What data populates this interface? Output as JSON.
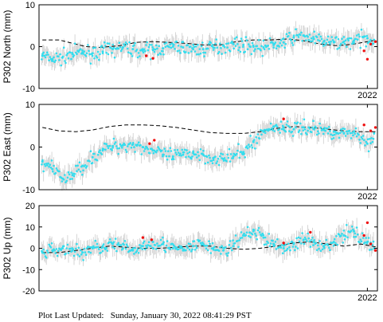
{
  "footer": {
    "label": "Plot Last Updated:",
    "timestamp": "Sunday, January 30, 2022 08:41:29 PST"
  },
  "colors": {
    "data_points": "#33ddee",
    "recent_points": "#ee1111",
    "error_bars": "#cccccc",
    "model_line": "#000000"
  },
  "chart_data": [
    {
      "type": "scatter",
      "ylabel": "P302 North (mm)",
      "ylim": [
        -10,
        10
      ],
      "yticks": [
        -10,
        0,
        10
      ],
      "xtick_label": "2022",
      "xlim": [
        2017.1,
        2022.15
      ],
      "xtick_value": 2022.0,
      "series": [
        {
          "values": [
            [
              2017.15,
              -2.2
            ],
            [
              2017.3,
              -3.0
            ],
            [
              2017.45,
              -2.6
            ],
            [
              2017.6,
              -1.8
            ],
            [
              2017.75,
              -1.4
            ],
            [
              2017.9,
              -1.6
            ],
            [
              2018.05,
              -1.2
            ],
            [
              2018.2,
              -0.6
            ],
            [
              2018.35,
              -0.2
            ],
            [
              2018.5,
              -0.6
            ],
            [
              2018.65,
              -1.0
            ],
            [
              2018.8,
              -0.8
            ],
            [
              2018.95,
              -0.4
            ],
            [
              2019.1,
              0.0
            ],
            [
              2019.25,
              -0.2
            ],
            [
              2019.4,
              -0.6
            ],
            [
              2019.55,
              -0.6
            ],
            [
              2019.7,
              -0.2
            ],
            [
              2019.85,
              0.2
            ],
            [
              2020.0,
              0.6
            ],
            [
              2020.15,
              0.4
            ],
            [
              2020.3,
              0.0
            ],
            [
              2020.45,
              -0.2
            ],
            [
              2020.6,
              0.4
            ],
            [
              2020.75,
              1.0
            ],
            [
              2020.9,
              2.2
            ],
            [
              2021.05,
              2.6
            ],
            [
              2021.2,
              1.8
            ],
            [
              2021.35,
              1.2
            ],
            [
              2021.5,
              1.0
            ],
            [
              2021.65,
              1.2
            ],
            [
              2021.8,
              1.4
            ],
            [
              2022.0,
              2.0
            ],
            [
              2022.1,
              1.6
            ]
          ]
        },
        {
          "values": [
            [
              2018.7,
              -2.2
            ],
            [
              2018.8,
              -2.8
            ],
            [
              2021.95,
              -1.0
            ],
            [
              2022.0,
              -3.0
            ],
            [
              2022.05,
              0.6
            ],
            [
              2022.12,
              1.2
            ]
          ]
        },
        {
          "values": [
            [
              2017.15,
              1.6
            ],
            [
              2017.4,
              1.6
            ],
            [
              2017.6,
              0.8
            ],
            [
              2017.8,
              0.0
            ],
            [
              2018.0,
              -0.2
            ],
            [
              2018.3,
              0.2
            ],
            [
              2018.55,
              1.0
            ],
            [
              2018.8,
              1.2
            ],
            [
              2019.05,
              1.0
            ],
            [
              2019.3,
              0.8
            ],
            [
              2019.55,
              0.4
            ],
            [
              2019.8,
              0.4
            ],
            [
              2020.05,
              1.2
            ],
            [
              2020.3,
              1.6
            ],
            [
              2020.55,
              1.6
            ],
            [
              2020.8,
              1.8
            ],
            [
              2021.05,
              1.4
            ],
            [
              2021.3,
              0.6
            ],
            [
              2021.55,
              0.2
            ],
            [
              2021.8,
              0.6
            ],
            [
              2022.0,
              1.2
            ],
            [
              2022.15,
              1.6
            ]
          ]
        }
      ]
    },
    {
      "type": "scatter",
      "ylabel": "P302 East (mm)",
      "ylim": [
        -10,
        10
      ],
      "yticks": [
        -10,
        0,
        10
      ],
      "xtick_label": "2022",
      "xlim": [
        2017.1,
        2022.15
      ],
      "xtick_value": 2022.0,
      "series": [
        {
          "values": [
            [
              2017.15,
              -3.4
            ],
            [
              2017.3,
              -5.2
            ],
            [
              2017.45,
              -7.4
            ],
            [
              2017.6,
              -6.6
            ],
            [
              2017.75,
              -4.4
            ],
            [
              2017.9,
              -2.4
            ],
            [
              2018.05,
              -0.8
            ],
            [
              2018.2,
              0.2
            ],
            [
              2018.35,
              0.4
            ],
            [
              2018.5,
              0.6
            ],
            [
              2018.65,
              0.0
            ],
            [
              2018.8,
              -0.8
            ],
            [
              2018.95,
              -1.8
            ],
            [
              2019.1,
              -2.2
            ],
            [
              2019.25,
              -1.8
            ],
            [
              2019.4,
              -1.4
            ],
            [
              2019.55,
              -1.8
            ],
            [
              2019.7,
              -2.6
            ],
            [
              2019.85,
              -2.8
            ],
            [
              2020.0,
              -2.2
            ],
            [
              2020.15,
              -1.2
            ],
            [
              2020.3,
              1.2
            ],
            [
              2020.45,
              3.6
            ],
            [
              2020.6,
              4.8
            ],
            [
              2020.75,
              4.6
            ],
            [
              2020.9,
              4.2
            ],
            [
              2021.05,
              4.6
            ],
            [
              2021.2,
              4.2
            ],
            [
              2021.35,
              4.0
            ],
            [
              2021.5,
              3.6
            ],
            [
              2021.65,
              3.2
            ],
            [
              2021.8,
              3.6
            ],
            [
              2022.0,
              0.8
            ],
            [
              2022.1,
              3.2
            ]
          ]
        },
        {
          "values": [
            [
              2018.75,
              0.8
            ],
            [
              2018.82,
              1.6
            ],
            [
              2020.75,
              6.6
            ],
            [
              2021.95,
              5.2
            ],
            [
              2022.05,
              3.8
            ],
            [
              2022.12,
              4.6
            ]
          ]
        },
        {
          "values": [
            [
              2017.15,
              4.6
            ],
            [
              2017.4,
              3.8
            ],
            [
              2017.65,
              3.6
            ],
            [
              2017.9,
              4.0
            ],
            [
              2018.15,
              4.8
            ],
            [
              2018.4,
              5.2
            ],
            [
              2018.65,
              5.2
            ],
            [
              2018.9,
              5.0
            ],
            [
              2019.15,
              4.6
            ],
            [
              2019.4,
              4.0
            ],
            [
              2019.65,
              3.4
            ],
            [
              2019.9,
              3.2
            ],
            [
              2020.15,
              3.2
            ],
            [
              2020.4,
              3.6
            ],
            [
              2020.65,
              4.4
            ],
            [
              2020.9,
              4.8
            ],
            [
              2021.15,
              4.6
            ],
            [
              2021.4,
              4.2
            ],
            [
              2021.65,
              3.8
            ],
            [
              2021.9,
              3.6
            ],
            [
              2022.15,
              3.6
            ]
          ]
        }
      ]
    },
    {
      "type": "scatter",
      "ylabel": "P302 Up (mm)",
      "ylim": [
        -20,
        20
      ],
      "yticks": [
        -20,
        -10,
        0,
        10,
        20
      ],
      "xtick_label": "2022",
      "xlim": [
        2017.1,
        2022.15
      ],
      "xtick_value": 2022.0,
      "series": [
        {
          "values": [
            [
              2017.15,
              -2.0
            ],
            [
              2017.3,
              -1.0
            ],
            [
              2017.45,
              0.0
            ],
            [
              2017.6,
              -1.0
            ],
            [
              2017.75,
              -2.0
            ],
            [
              2017.9,
              0.0
            ],
            [
              2018.05,
              1.0
            ],
            [
              2018.2,
              2.0
            ],
            [
              2018.35,
              0.0
            ],
            [
              2018.5,
              -1.0
            ],
            [
              2018.65,
              1.0
            ],
            [
              2018.8,
              3.0
            ],
            [
              2018.95,
              2.0
            ],
            [
              2019.1,
              0.0
            ],
            [
              2019.25,
              -1.0
            ],
            [
              2019.4,
              1.0
            ],
            [
              2019.55,
              2.0
            ],
            [
              2019.7,
              0.0
            ],
            [
              2019.85,
              -1.0
            ],
            [
              2020.0,
              1.0
            ],
            [
              2020.15,
              6.0
            ],
            [
              2020.3,
              8.0
            ],
            [
              2020.45,
              5.0
            ],
            [
              2020.6,
              2.0
            ],
            [
              2020.75,
              0.0
            ],
            [
              2020.9,
              2.0
            ],
            [
              2021.05,
              4.0
            ],
            [
              2021.2,
              3.0
            ],
            [
              2021.35,
              1.0
            ],
            [
              2021.5,
              3.0
            ],
            [
              2021.65,
              6.0
            ],
            [
              2021.8,
              8.0
            ],
            [
              2022.0,
              3.0
            ],
            [
              2022.1,
              0.0
            ]
          ]
        },
        {
          "values": [
            [
              2018.65,
              5.0
            ],
            [
              2018.78,
              4.0
            ],
            [
              2020.75,
              2.5
            ],
            [
              2021.15,
              7.5
            ],
            [
              2021.95,
              6.0
            ],
            [
              2022.0,
              12.0
            ],
            [
              2022.05,
              2.0
            ],
            [
              2022.12,
              -1.0
            ]
          ]
        },
        {
          "values": [
            [
              2017.15,
              -2.0
            ],
            [
              2017.4,
              -2.0
            ],
            [
              2017.65,
              -1.0
            ],
            [
              2017.9,
              0.0
            ],
            [
              2018.15,
              1.0
            ],
            [
              2018.4,
              0.5
            ],
            [
              2018.65,
              0.0
            ],
            [
              2018.9,
              0.0
            ],
            [
              2019.15,
              0.5
            ],
            [
              2019.4,
              1.0
            ],
            [
              2019.65,
              1.0
            ],
            [
              2019.9,
              0.0
            ],
            [
              2020.15,
              -0.5
            ],
            [
              2020.4,
              0.0
            ],
            [
              2020.65,
              1.0
            ],
            [
              2020.9,
              2.5
            ],
            [
              2021.15,
              3.0
            ],
            [
              2021.4,
              2.0
            ],
            [
              2021.65,
              1.0
            ],
            [
              2021.9,
              2.0
            ],
            [
              2022.15,
              0.5
            ]
          ]
        }
      ]
    }
  ]
}
